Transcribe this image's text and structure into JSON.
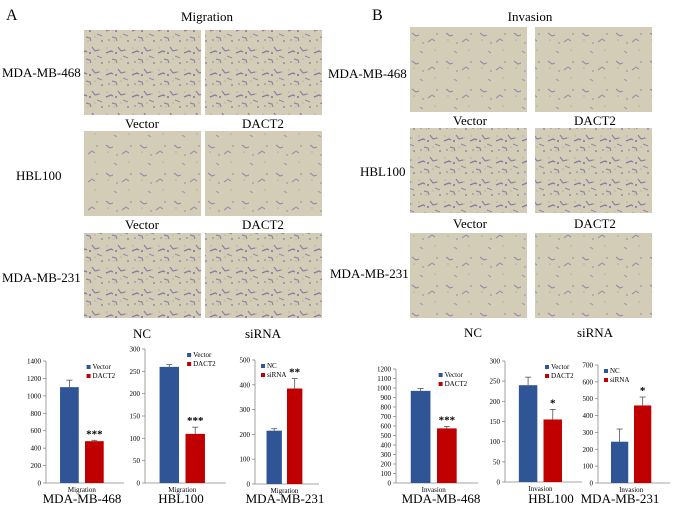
{
  "colors": {
    "blue": "#2f5597",
    "red": "#c00000",
    "micro_bg": "#d3cdb8",
    "micro_cell": "#6e5e9c",
    "micro_grain": "#b7ae95"
  },
  "panel_A": {
    "letter": "A",
    "title": "Migration",
    "rows": [
      {
        "label": "MDA-MB-468",
        "captions": [
          "Vector",
          "DACT2"
        ]
      },
      {
        "label": "HBL100",
        "captions": [
          "Vector",
          "DACT2"
        ]
      },
      {
        "label": "MDA-MB-231",
        "captions": [
          "NC",
          "siRNA"
        ]
      }
    ]
  },
  "panel_B": {
    "letter": "B",
    "title": "Invasion",
    "rows": [
      {
        "label": "MDA-MB-468",
        "captions": [
          "Vector",
          "DACT2"
        ]
      },
      {
        "label": "HBL100",
        "captions": [
          "Vector",
          "DACT2"
        ]
      },
      {
        "label": "MDA-MB-231",
        "captions": [
          "NC",
          "siRNA"
        ]
      }
    ]
  },
  "chart_data": [
    {
      "type": "bar",
      "panel": "A",
      "cell_line": "MDA-MB-468",
      "categories": [
        "Migration"
      ],
      "series": [
        {
          "name": "Vector",
          "values": [
            1100
          ],
          "error": [
            80
          ]
        },
        {
          "name": "DACT2",
          "values": [
            480
          ],
          "error": [
            10
          ]
        }
      ],
      "ylim": [
        0,
        1400
      ],
      "yticks": [
        0,
        200,
        400,
        600,
        800,
        1000,
        1200,
        1400
      ],
      "significance": "***",
      "legend": "top-right"
    },
    {
      "type": "bar",
      "panel": "A",
      "cell_line": "HBL100",
      "categories": [
        "Migration"
      ],
      "series": [
        {
          "name": "Vector",
          "values": [
            260
          ],
          "error": [
            5
          ]
        },
        {
          "name": "DACT2",
          "values": [
            110
          ],
          "error": [
            15
          ]
        }
      ],
      "ylim": [
        0,
        300
      ],
      "yticks": [
        0,
        50,
        100,
        150,
        200,
        250,
        300
      ],
      "significance": "***",
      "legend": "top-right"
    },
    {
      "type": "bar",
      "panel": "A",
      "cell_line": "MDA-MB-231",
      "categories": [
        "Migration"
      ],
      "series": [
        {
          "name": "NC",
          "values": [
            215
          ],
          "error": [
            8
          ]
        },
        {
          "name": "siRNA",
          "values": [
            385
          ],
          "error": [
            40
          ]
        }
      ],
      "ylim": [
        0,
        500
      ],
      "yticks": [
        0,
        100,
        200,
        300,
        400,
        500
      ],
      "significance": "**",
      "legend": "top-left"
    },
    {
      "type": "bar",
      "panel": "B",
      "cell_line": "MDA-MB-468",
      "categories": [
        "Invasion"
      ],
      "series": [
        {
          "name": "Vector",
          "values": [
            970
          ],
          "error": [
            25
          ]
        },
        {
          "name": "DACT2",
          "values": [
            575
          ],
          "error": [
            20
          ]
        }
      ],
      "ylim": [
        0,
        1200
      ],
      "yticks": [
        0,
        100,
        200,
        300,
        400,
        500,
        600,
        700,
        800,
        900,
        1000,
        1100,
        1200
      ],
      "significance": "***",
      "legend": "top-right"
    },
    {
      "type": "bar",
      "panel": "B",
      "cell_line": "HBL100",
      "categories": [
        "Invasion"
      ],
      "series": [
        {
          "name": "Vector",
          "values": [
            240
          ],
          "error": [
            20
          ]
        },
        {
          "name": "DACT2",
          "values": [
            155
          ],
          "error": [
            25
          ]
        }
      ],
      "ylim": [
        0,
        300
      ],
      "yticks": [
        0,
        50,
        100,
        150,
        200,
        250,
        300
      ],
      "significance": "*",
      "legend": "top-right"
    },
    {
      "type": "bar",
      "panel": "B",
      "cell_line": "MDA-MB-231",
      "categories": [
        "Invasion"
      ],
      "series": [
        {
          "name": "NC",
          "values": [
            245
          ],
          "error": [
            75
          ]
        },
        {
          "name": "siRNA",
          "values": [
            460
          ],
          "error": [
            50
          ]
        }
      ],
      "ylim": [
        0,
        700
      ],
      "yticks": [
        0,
        100,
        200,
        300,
        400,
        500,
        600,
        700
      ],
      "significance": "*",
      "legend": "top-left"
    }
  ]
}
